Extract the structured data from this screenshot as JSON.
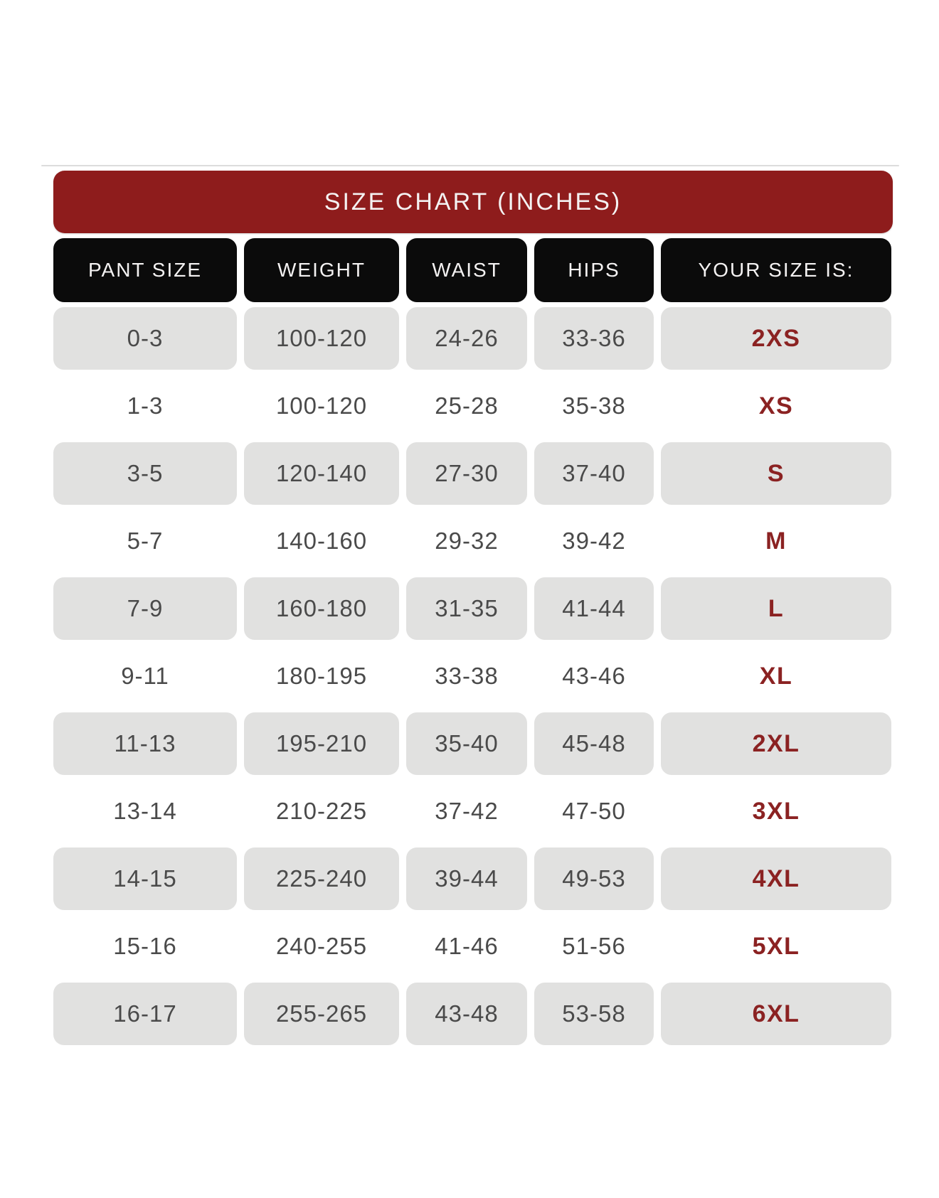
{
  "title": "SIZE CHART (INCHES)",
  "chart_data": {
    "type": "table",
    "title": "SIZE CHART (INCHES)",
    "columns": [
      "PANT SIZE",
      "WEIGHT",
      "WAIST",
      "HIPS",
      "YOUR SIZE IS:"
    ],
    "rows": [
      [
        "0-3",
        "100-120",
        "24-26",
        "33-36",
        "2XS"
      ],
      [
        "1-3",
        "100-120",
        "25-28",
        "35-38",
        "XS"
      ],
      [
        "3-5",
        "120-140",
        "27-30",
        "37-40",
        "S"
      ],
      [
        "5-7",
        "140-160",
        "29-32",
        "39-42",
        "M"
      ],
      [
        "7-9",
        "160-180",
        "31-35",
        "41-44",
        "L"
      ],
      [
        "9-11",
        "180-195",
        "33-38",
        "43-46",
        "XL"
      ],
      [
        "11-13",
        "195-210",
        "35-40",
        "45-48",
        "2XL"
      ],
      [
        "13-14",
        "210-225",
        "37-42",
        "47-50",
        "3XL"
      ],
      [
        "14-15",
        "225-240",
        "39-44",
        "49-53",
        "4XL"
      ],
      [
        "15-16",
        "240-255",
        "41-46",
        "51-56",
        "5XL"
      ],
      [
        "16-17",
        "255-265",
        "43-48",
        "53-58",
        "6XL"
      ]
    ],
    "layout": {
      "shaded_rows": "odd rows (1st, 3rd, 5th...) have gray pill backgrounds",
      "grid": "off",
      "legend": "none"
    }
  },
  "colors": {
    "title_bar_red": "#8e1c1c",
    "header_pill_black": "#0b0b0b",
    "row_pill_gray": "#e1e1e0",
    "data_text_gray": "#4a4a4a",
    "size_text_red": "#8b2222",
    "header_text": "#f4f2f2"
  }
}
